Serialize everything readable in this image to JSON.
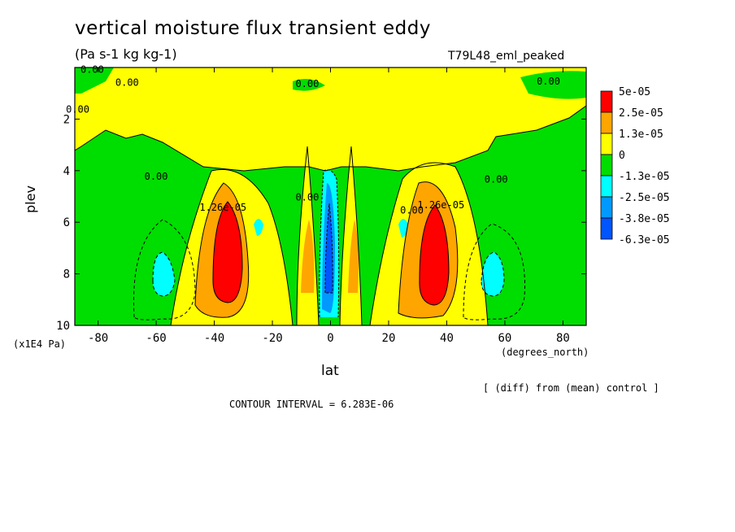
{
  "title": "vertical moisture flux transient eddy",
  "units": "(Pa s-1 kg kg-1)",
  "run_label": "T79L48_eml_peaked",
  "footer_note": "[ (diff) from (mean) control ]",
  "contour_interval": "CONTOUR INTERVAL = 6.283E-06",
  "chart_data": {
    "type": "contour",
    "xlabel": "lat",
    "ylabel": "plev",
    "x_units": "(degrees_north)",
    "y_units": "(x1E4 Pa)",
    "xlim": [
      -88,
      88
    ],
    "ylim": [
      10,
      0
    ],
    "x_ticks": [
      -80,
      -60,
      -40,
      -20,
      0,
      20,
      40,
      60,
      80
    ],
    "y_ticks": [
      2,
      4,
      6,
      8,
      10
    ],
    "legend": {
      "position": "right",
      "colors": [
        "#ff0000",
        "#ffa500",
        "#ffff00",
        "#00dd00",
        "#00ffff",
        "#0099ff",
        "#0055ff"
      ],
      "labels": [
        "5e-05",
        "2.5e-05",
        "1.3e-05",
        "0",
        "-1.3e-05",
        "-2.5e-05",
        "-3.8e-05",
        "-6.3e-05"
      ]
    },
    "contour_labels": [
      {
        "text": "0.00",
        "lat": -82,
        "plev": 0.05
      },
      {
        "text": "0.00",
        "lat": -70,
        "plev": 0.55
      },
      {
        "text": "0.00",
        "lat": -87,
        "plev": 1.6
      },
      {
        "text": "0.00",
        "lat": -60,
        "plev": 4.2
      },
      {
        "text": "0.00",
        "lat": -8,
        "plev": 5.0
      },
      {
        "text": "0.00",
        "lat": 28,
        "plev": 5.5
      },
      {
        "text": "0.00",
        "lat": 57,
        "plev": 4.3
      },
      {
        "text": "0.00",
        "lat": 75,
        "plev": 0.5
      },
      {
        "text": "0.00",
        "lat": -8,
        "plev": 0.6
      },
      {
        "text": "1.26e-05",
        "lat": -37,
        "plev": 5.4
      },
      {
        "text": "1.26e-05",
        "lat": 38,
        "plev": 5.3
      }
    ],
    "features": [
      {
        "kind": "positive-max",
        "lat": -37,
        "plev": 7.5,
        "level": "5e-05"
      },
      {
        "kind": "positive-max",
        "lat": 37,
        "plev": 7.5,
        "level": "5e-05"
      },
      {
        "kind": "negative-min",
        "lat": 0,
        "plev": 6.5,
        "level": "-6.3e-05"
      },
      {
        "kind": "negative-min",
        "lat": -60,
        "plev": 8.0,
        "level": "-1.3e-05"
      },
      {
        "kind": "negative-min",
        "lat": 60,
        "plev": 8.0,
        "level": "-1.3e-05"
      }
    ]
  }
}
